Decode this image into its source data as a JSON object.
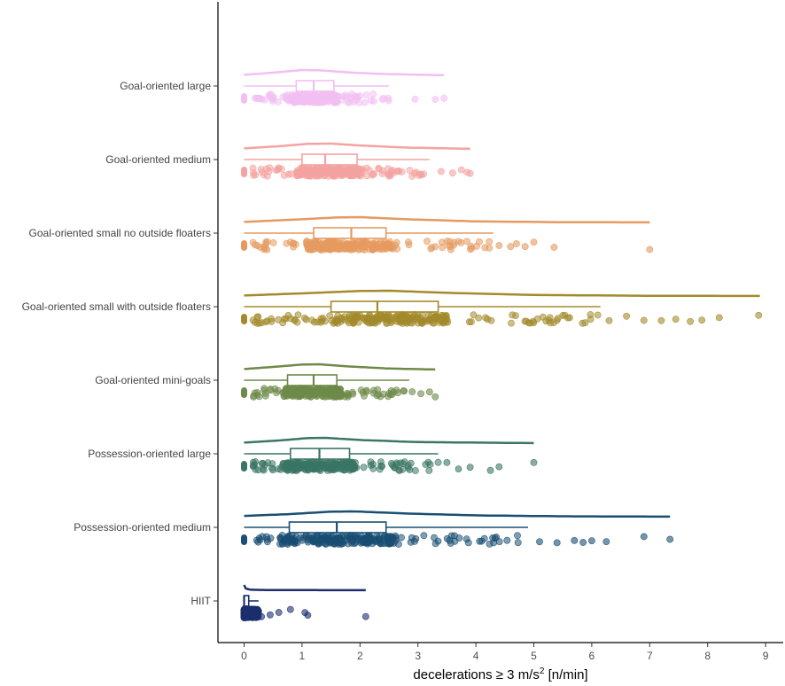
{
  "chart_data": {
    "type": "raincloud",
    "title": "",
    "xlabel_main": "decelerations ≥ 3 m/s",
    "xlabel_sup": "2",
    "xlabel_suffix": " [n/min]",
    "ylabel": "",
    "xlim": [
      -0.45,
      9.3
    ],
    "xticks": [
      0,
      1,
      2,
      3,
      4,
      5,
      6,
      7,
      8,
      9
    ],
    "xtick_labels": [
      "0",
      "1",
      "2",
      "3",
      "4",
      "5",
      "6",
      "7",
      "8",
      "9"
    ],
    "grid": false,
    "series": [
      {
        "name": "Goal-oriented large",
        "color": "#f2bff2",
        "min": 0,
        "max": 3.45,
        "q1": 0.9,
        "median": 1.2,
        "q3": 1.55,
        "whisker_low": 0,
        "whisker_high": 2.5,
        "outliers": [
          2.95,
          3.3,
          3.45
        ],
        "density": [
          [
            0,
            0.1
          ],
          [
            0.5,
            0.5
          ],
          [
            1.0,
            1.0
          ],
          [
            1.3,
            0.95
          ],
          [
            1.8,
            0.55
          ],
          [
            2.4,
            0.25
          ],
          [
            3.45,
            0.02
          ]
        ]
      },
      {
        "name": "Goal-oriented medium",
        "color": "#f4a3a0",
        "min": 0,
        "max": 3.9,
        "q1": 1.0,
        "median": 1.4,
        "q3": 1.95,
        "whisker_low": 0,
        "whisker_high": 3.2,
        "outliers": [
          3.4,
          3.6,
          3.75,
          3.85,
          3.9
        ],
        "density": [
          [
            0,
            0.1
          ],
          [
            0.6,
            0.5
          ],
          [
            1.1,
            0.95
          ],
          [
            1.5,
            1.0
          ],
          [
            2.0,
            0.65
          ],
          [
            2.8,
            0.25
          ],
          [
            3.9,
            0.02
          ]
        ]
      },
      {
        "name": "Goal-oriented small no outside floaters",
        "color": "#e59a60",
        "min": 0,
        "max": 7.0,
        "q1": 1.2,
        "median": 1.85,
        "q3": 2.45,
        "whisker_low": 0,
        "whisker_high": 4.3,
        "outliers": [
          4.4,
          4.6,
          4.7,
          4.85,
          5.0,
          5.35,
          7.0
        ],
        "density": [
          [
            0,
            0.1
          ],
          [
            0.8,
            0.5
          ],
          [
            1.6,
            0.95
          ],
          [
            2.0,
            1.0
          ],
          [
            2.8,
            0.6
          ],
          [
            4.0,
            0.2
          ],
          [
            5.5,
            0.05
          ],
          [
            7.0,
            0.01
          ]
        ]
      },
      {
        "name": "Goal-oriented small with outside floaters",
        "color": "#a38a2c",
        "min": 0,
        "max": 8.9,
        "q1": 1.5,
        "median": 2.3,
        "q3": 3.35,
        "whisker_low": 0,
        "whisker_high": 6.15,
        "outliers": [
          6.3,
          6.6,
          6.9,
          7.2,
          7.45,
          7.7,
          7.9,
          8.2,
          8.88
        ],
        "density": [
          [
            0,
            0.1
          ],
          [
            1.0,
            0.5
          ],
          [
            2.0,
            0.95
          ],
          [
            2.5,
            1.0
          ],
          [
            3.5,
            0.6
          ],
          [
            5.0,
            0.2
          ],
          [
            7.0,
            0.05
          ],
          [
            8.9,
            0.01
          ]
        ]
      },
      {
        "name": "Goal-oriented mini-goals",
        "color": "#6e8a48",
        "min": 0,
        "max": 3.3,
        "q1": 0.75,
        "median": 1.2,
        "q3": 1.6,
        "whisker_low": 0,
        "whisker_high": 2.85,
        "outliers": [
          2.9,
          3.05,
          3.2,
          3.3
        ],
        "density": [
          [
            0,
            0.1
          ],
          [
            0.5,
            0.5
          ],
          [
            1.0,
            0.95
          ],
          [
            1.3,
            1.0
          ],
          [
            1.8,
            0.6
          ],
          [
            2.5,
            0.2
          ],
          [
            3.3,
            0.02
          ]
        ]
      },
      {
        "name": "Possession-oriented large",
        "color": "#3a7565",
        "min": 0,
        "max": 5.0,
        "q1": 0.8,
        "median": 1.3,
        "q3": 1.82,
        "whisker_low": 0,
        "whisker_high": 3.35,
        "outliers": [
          3.5,
          3.7,
          3.9,
          4.25,
          4.4,
          5.0
        ],
        "density": [
          [
            0,
            0.1
          ],
          [
            0.6,
            0.5
          ],
          [
            1.1,
            0.95
          ],
          [
            1.4,
            1.0
          ],
          [
            2.0,
            0.6
          ],
          [
            3.0,
            0.2
          ],
          [
            5.0,
            0.01
          ]
        ]
      },
      {
        "name": "Possession-oriented medium",
        "color": "#1a4e72",
        "min": 0,
        "max": 7.35,
        "q1": 0.78,
        "median": 1.6,
        "q3": 2.45,
        "whisker_low": 0,
        "whisker_high": 4.9,
        "outliers": [
          5.1,
          5.4,
          5.7,
          5.85,
          6.0,
          6.25,
          6.9,
          7.35
        ],
        "density": [
          [
            0,
            0.15
          ],
          [
            0.8,
            0.5
          ],
          [
            1.5,
            0.95
          ],
          [
            1.9,
            1.0
          ],
          [
            2.8,
            0.6
          ],
          [
            4.0,
            0.25
          ],
          [
            5.5,
            0.08
          ],
          [
            7.35,
            0.01
          ]
        ]
      },
      {
        "name": "HIIT",
        "color": "#1b2f6e",
        "min": 0,
        "max": 2.1,
        "q1": 0.0,
        "median": 0.0,
        "q3": 0.08,
        "whisker_low": 0,
        "whisker_high": 0.25,
        "outliers": [
          0.3,
          0.45,
          0.6,
          0.8,
          1.05,
          1.1,
          2.1
        ],
        "density": [
          [
            0,
            1.0
          ],
          [
            0.03,
            0.3
          ],
          [
            0.12,
            0.1
          ],
          [
            0.4,
            0.05
          ],
          [
            1.0,
            0.03
          ],
          [
            2.1,
            0.01
          ]
        ]
      }
    ]
  }
}
